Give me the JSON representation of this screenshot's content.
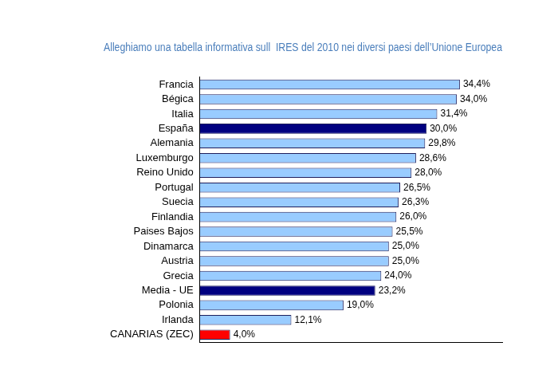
{
  "chart_data": {
    "type": "bar",
    "title": "Alleghiamo una tabella informativa sull  IRES del 2010 nei diversi paesi dell’Unione Europea",
    "orientation": "horizontal",
    "categories": [
      "Francia",
      "Bégica",
      "Italia",
      "España",
      "Alemania",
      "Luxemburgo",
      "Reino Unido",
      "Portugal",
      "Suecia",
      "Finlandia",
      "Paises Bajos",
      "Dinamarca",
      "Austria",
      "Grecia",
      "Media - UE",
      "Polonia",
      "Irlanda",
      "CANARIAS (ZEC)"
    ],
    "values": [
      34.4,
      34.0,
      31.4,
      30.0,
      29.8,
      28.6,
      28.0,
      26.5,
      26.3,
      26.0,
      25.5,
      25.0,
      25.0,
      24.0,
      23.2,
      19.0,
      12.1,
      4.0
    ],
    "value_labels": [
      "34,4%",
      "34,0%",
      "31,4%",
      "30,0%",
      "29,8%",
      "28,6%",
      "28,0%",
      "26,5%",
      "26,3%",
      "26,0%",
      "25,5%",
      "25,0%",
      "25,0%",
      "24,0%",
      "23,2%",
      "19,0%",
      "12,1%",
      "4,0%"
    ],
    "colors": [
      "#99ccff",
      "#99ccff",
      "#99ccff",
      "#000080",
      "#99ccff",
      "#99ccff",
      "#99ccff",
      "#99ccff",
      "#99ccff",
      "#99ccff",
      "#99ccff",
      "#99ccff",
      "#99ccff",
      "#99ccff",
      "#000080",
      "#99ccff",
      "#99ccff",
      "#ff0000"
    ],
    "xlim": [
      0,
      40
    ],
    "grid": false,
    "data_labels": true,
    "tick_labels": "y"
  }
}
